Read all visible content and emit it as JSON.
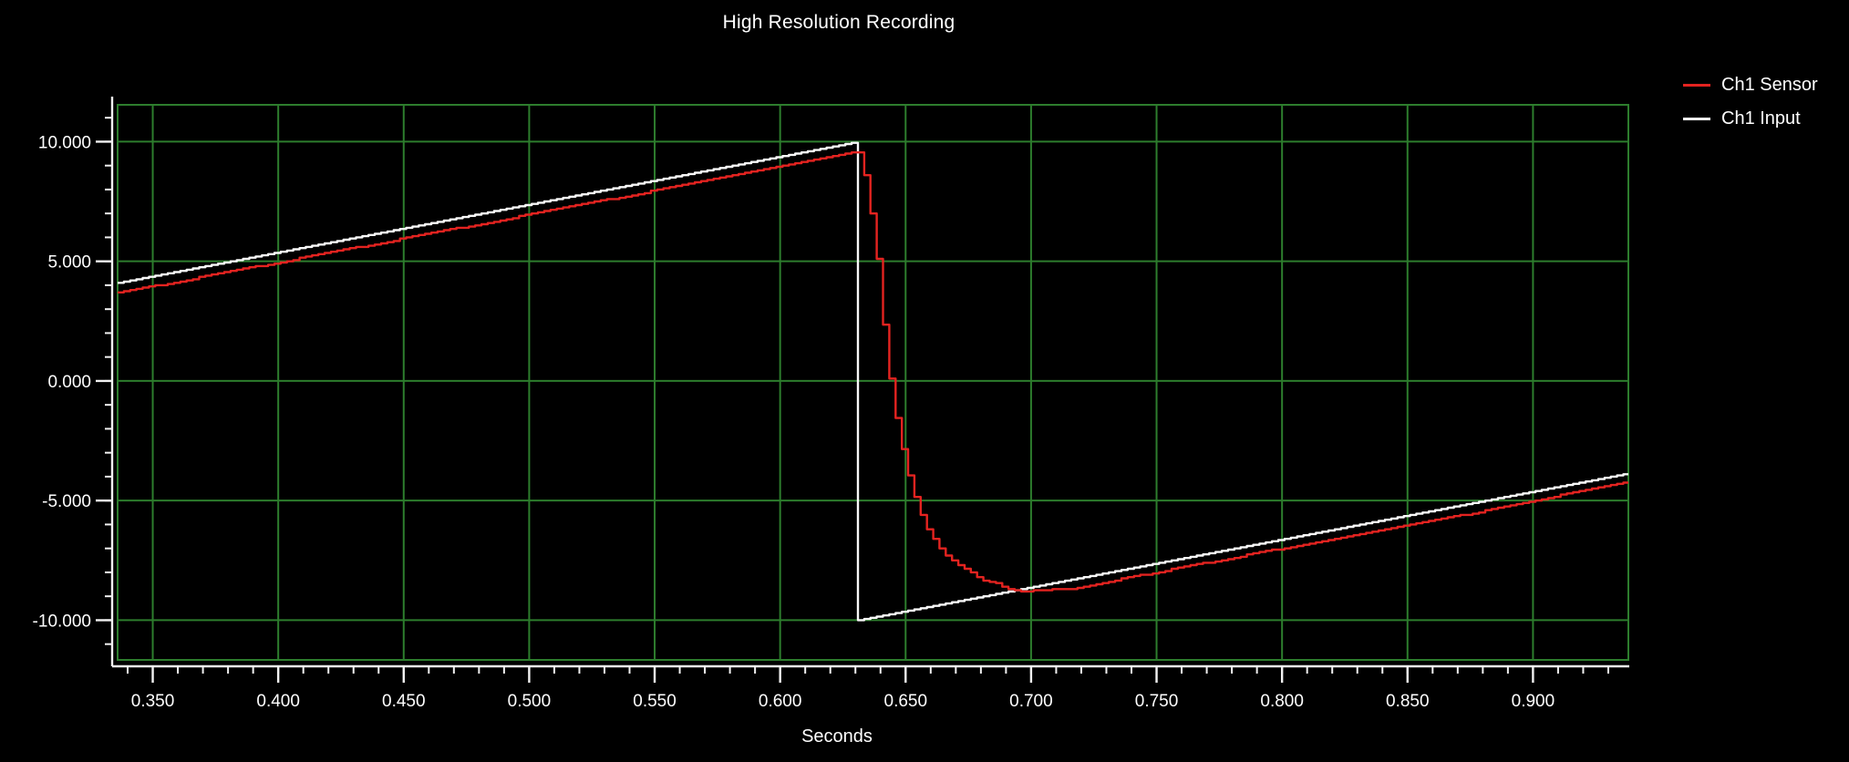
{
  "title": "High Resolution Recording",
  "colors": {
    "background": "#000000",
    "grid": "#2d7d2d",
    "axis": "#f2f2f2",
    "text": "#ffffff",
    "sensor": "#e42320",
    "input": "#f8f8f8"
  },
  "legend": [
    {
      "label": "Ch1 Sensor",
      "color": "#e42320"
    },
    {
      "label": "Ch1 Input",
      "color": "#f8f8f8"
    }
  ],
  "chart_data": {
    "type": "line",
    "title": "High Resolution Recording",
    "xlabel": "Seconds",
    "ylabel": "",
    "xlim": [
      0.336,
      0.938
    ],
    "ylim": [
      -11.66,
      11.54
    ],
    "grid": {
      "on": true,
      "x_lines": [
        0.35,
        0.4,
        0.45,
        0.5,
        0.55,
        0.6,
        0.65,
        0.7,
        0.75,
        0.8,
        0.85,
        0.9
      ],
      "y_lines": [
        -10,
        -5,
        0,
        5,
        10
      ]
    },
    "x_major_ticks": [
      {
        "value": 0.35,
        "label": "0.350"
      },
      {
        "value": 0.4,
        "label": "0.400"
      },
      {
        "value": 0.45,
        "label": "0.450"
      },
      {
        "value": 0.5,
        "label": "0.500"
      },
      {
        "value": 0.55,
        "label": "0.550"
      },
      {
        "value": 0.6,
        "label": "0.600"
      },
      {
        "value": 0.65,
        "label": "0.650"
      },
      {
        "value": 0.7,
        "label": "0.700"
      },
      {
        "value": 0.75,
        "label": "0.750"
      },
      {
        "value": 0.8,
        "label": "0.800"
      },
      {
        "value": 0.85,
        "label": "0.850"
      },
      {
        "value": 0.9,
        "label": "0.900"
      }
    ],
    "y_major_ticks": [
      {
        "value": 10,
        "label": "10.000"
      },
      {
        "value": 5,
        "label": "5.000"
      },
      {
        "value": 0,
        "label": "0.000"
      },
      {
        "value": -5,
        "label": "-5.000"
      },
      {
        "value": -10,
        "label": "-10.000"
      }
    ],
    "x_minor_ticks": {
      "start": 0.34,
      "end": 0.93,
      "step": 0.01
    },
    "y_minor_ticks": {
      "start": -11,
      "end": 11,
      "step": 1
    },
    "legend_position": "top-right",
    "render": {
      "sample_interval_s": 0.0025,
      "y_quantize": 0.05,
      "line_width": 2.4
    },
    "series": [
      {
        "name": "Ch1 Input",
        "color": "#f8f8f8",
        "points": [
          [
            0.336,
            4.12
          ],
          [
            0.63,
            10.0
          ],
          [
            0.6303,
            -9.99
          ],
          [
            0.938,
            -3.84
          ]
        ]
      },
      {
        "name": "Ch1 Sensor",
        "color": "#e42320",
        "points": [
          [
            0.336,
            3.7
          ],
          [
            0.36,
            4.14
          ],
          [
            0.38,
            4.58
          ],
          [
            0.4,
            4.94
          ],
          [
            0.42,
            5.38
          ],
          [
            0.44,
            5.74
          ],
          [
            0.46,
            6.18
          ],
          [
            0.48,
            6.54
          ],
          [
            0.5,
            6.96
          ],
          [
            0.52,
            7.38
          ],
          [
            0.54,
            7.74
          ],
          [
            0.56,
            8.18
          ],
          [
            0.58,
            8.56
          ],
          [
            0.6,
            8.97
          ],
          [
            0.615,
            9.28
          ],
          [
            0.627,
            9.5
          ],
          [
            0.6295,
            9.55
          ],
          [
            0.6315,
            9.55
          ],
          [
            0.6335,
            8.6
          ],
          [
            0.636,
            7.0
          ],
          [
            0.639,
            4.7
          ],
          [
            0.642,
            1.2
          ],
          [
            0.645,
            -1.0
          ],
          [
            0.648,
            -2.6
          ],
          [
            0.6515,
            -4.2
          ],
          [
            0.655,
            -5.35
          ],
          [
            0.659,
            -6.3
          ],
          [
            0.663,
            -6.95
          ],
          [
            0.667,
            -7.4
          ],
          [
            0.671,
            -7.7
          ],
          [
            0.675,
            -7.95
          ],
          [
            0.679,
            -8.25
          ],
          [
            0.6825,
            -8.42
          ],
          [
            0.685,
            -8.36
          ],
          [
            0.6885,
            -8.6
          ],
          [
            0.692,
            -8.73
          ],
          [
            0.696,
            -8.82
          ],
          [
            0.7,
            -8.78
          ],
          [
            0.708,
            -8.72
          ],
          [
            0.716,
            -8.72
          ],
          [
            0.722,
            -8.55
          ],
          [
            0.73,
            -8.42
          ],
          [
            0.74,
            -8.16
          ],
          [
            0.75,
            -8.02
          ],
          [
            0.762,
            -7.7
          ],
          [
            0.775,
            -7.52
          ],
          [
            0.79,
            -7.18
          ],
          [
            0.8,
            -7.0
          ],
          [
            0.815,
            -6.74
          ],
          [
            0.83,
            -6.4
          ],
          [
            0.845,
            -6.12
          ],
          [
            0.86,
            -5.8
          ],
          [
            0.875,
            -5.56
          ],
          [
            0.89,
            -5.2
          ],
          [
            0.905,
            -4.9
          ],
          [
            0.92,
            -4.58
          ],
          [
            0.938,
            -4.22
          ]
        ]
      }
    ]
  }
}
